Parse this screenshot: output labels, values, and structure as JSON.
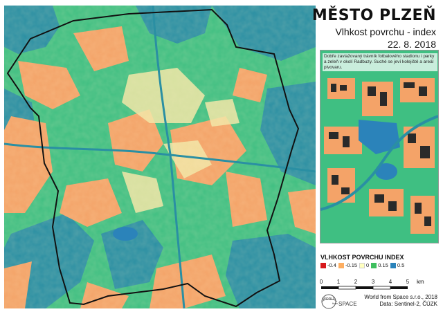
{
  "map": {
    "title": "MĚSTO PLZEŇ",
    "subtitle": "Vlhkost povrchu - index",
    "date": "22. 8. 2018",
    "inset_note": "Dobře zavlažovaný trávník fotbalového stadionu i parky a zeleň v okolí Radbuzy. Suché se jeví kolejiště a areál pivovaru.",
    "legend": {
      "title": "VLHKOST POVRCHU INDEX",
      "items": [
        {
          "label": "-0.4",
          "color": "#d7191c"
        },
        {
          "label": "-0.15",
          "color": "#fdae61"
        },
        {
          "label": "0",
          "color": "#ffffbf"
        },
        {
          "label": "0.15",
          "color": "#3fbf5f"
        },
        {
          "label": "0.5",
          "color": "#2b83ba"
        }
      ]
    },
    "scale": {
      "ticks": [
        "0",
        "1",
        "2",
        "3",
        "4",
        "5"
      ],
      "unit": "km"
    },
    "logo": {
      "line1": "WORLD",
      "line2": "from",
      "line3": "SPACE"
    },
    "credit": {
      "line1": "World from Space s.r.o., 2018",
      "line2": "Data: Sentinel-2, ČÚZK"
    },
    "colors": {
      "dry": "#f4a368",
      "moist": "#3fbf82",
      "wet": "#2a8fa3",
      "neutral": "#f2e6a6",
      "boundary": "#111111"
    }
  }
}
